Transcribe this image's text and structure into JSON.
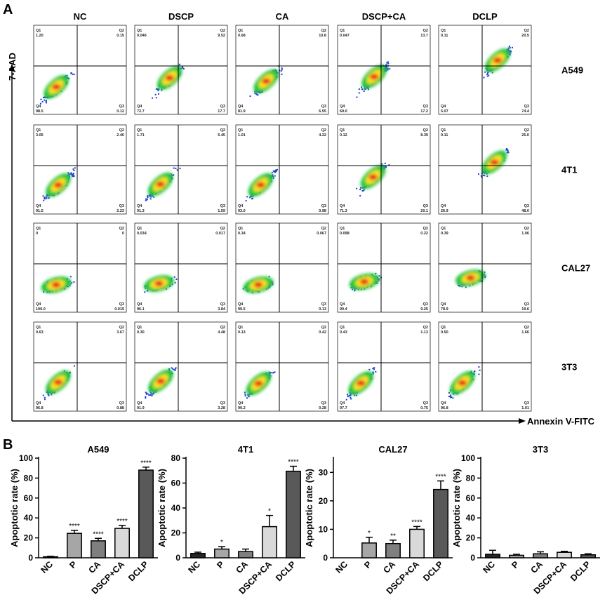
{
  "panel_a": {
    "label": "A",
    "y_axis_label": "7-AAD",
    "x_axis_label": "Annexin V-FITC",
    "columns": [
      "NC",
      "DSCP",
      "CA",
      "DSCP+CA",
      "DCLP"
    ],
    "rows": [
      {
        "name": "A549",
        "plots": [
          {
            "q1": "1.20",
            "q2": "0.15",
            "q3": "0.12",
            "q4": "98.5"
          },
          {
            "q1": "0.046",
            "q2": "9.52",
            "q3": "17.7",
            "q4": "72.7"
          },
          {
            "q1": "0.68",
            "q2": "10.8",
            "q3": "6.55",
            "q4": "81.9"
          },
          {
            "q1": "0.047",
            "q2": "13.7",
            "q3": "17.2",
            "q4": "69.0"
          },
          {
            "q1": "0.11",
            "q2": "20.5",
            "q3": "74.4",
            "q4": "5.07"
          }
        ]
      },
      {
        "name": "4T1",
        "plots": [
          {
            "q1": "3.05",
            "q2": "2.40",
            "q3": "2.23",
            "q4": "91.5"
          },
          {
            "q1": "1.71",
            "q2": "5.45",
            "q3": "1.59",
            "q4": "91.3"
          },
          {
            "q1": "1.01",
            "q2": "4.22",
            "q3": "0.98",
            "q4": "93.0"
          },
          {
            "q1": "0.12",
            "q2": "8.39",
            "q3": "20.1",
            "q4": "71.3"
          },
          {
            "q1": "0.11",
            "q2": "25.0",
            "q3": "48.0",
            "q4": "26.9"
          }
        ]
      },
      {
        "name": "CAL27",
        "plots": [
          {
            "q1": "0",
            "q2": "0",
            "q3": "0.015",
            "q4": "100.0"
          },
          {
            "q1": "0.034",
            "q2": "0.017",
            "q3": "3.84",
            "q4": "96.1"
          },
          {
            "q1": "0.34",
            "q2": "0.067",
            "q3": "0.13",
            "q4": "99.5"
          },
          {
            "q1": "0.098",
            "q2": "0.22",
            "q3": "9.25",
            "q4": "90.4"
          },
          {
            "q1": "0.39",
            "q2": "1.06",
            "q3": "19.6",
            "q4": "78.9"
          }
        ]
      },
      {
        "name": "3T3",
        "plots": [
          {
            "q1": "0.63",
            "q2": "3.67",
            "q3": "0.88",
            "q4": "96.8"
          },
          {
            "q1": "0.30",
            "q2": "4.48",
            "q3": "3.28",
            "q4": "91.9"
          },
          {
            "q1": "0.13",
            "q2": "0.42",
            "q3": "0.28",
            "q4": "99.2"
          },
          {
            "q1": "0.43",
            "q2": "1.13",
            "q3": "0.75",
            "q4": "97.7"
          },
          {
            "q1": "0.50",
            "q2": "1.66",
            "q3": "1.01",
            "q4": "96.8"
          }
        ]
      }
    ]
  },
  "panel_b": {
    "label": "B"
  },
  "chart_data": [
    {
      "type": "bar",
      "title": "A549",
      "ylabel": "Apoptotic rate (%)",
      "ylim": [
        0,
        100
      ],
      "yticks": [
        0,
        20,
        40,
        60,
        80,
        100
      ],
      "categories": [
        "NC",
        "P",
        "CA",
        "DSCP+CA",
        "DCLP"
      ],
      "values": [
        1,
        24.5,
        17,
        29.5,
        88
      ],
      "errors": [
        0.5,
        3,
        2.5,
        3,
        3
      ],
      "significance": [
        "",
        "****",
        "****",
        "****",
        "****"
      ],
      "colors": [
        "#262626",
        "#a6a6a6",
        "#7f7f7f",
        "#d9d9d9",
        "#595959"
      ]
    },
    {
      "type": "bar",
      "title": "4T1",
      "ylabel": "Apoptotic rate (%)",
      "ylim": [
        0,
        80
      ],
      "yticks": [
        0,
        20,
        40,
        60,
        80
      ],
      "categories": [
        "NC",
        "P",
        "CA",
        "DSCP+CA",
        "DCLP"
      ],
      "values": [
        3.5,
        7,
        5,
        25,
        69.5
      ],
      "errors": [
        1,
        2,
        2,
        9,
        4
      ],
      "significance": [
        "",
        "*",
        "",
        "*",
        "****"
      ],
      "colors": [
        "#262626",
        "#a6a6a6",
        "#7f7f7f",
        "#d9d9d9",
        "#595959"
      ]
    },
    {
      "type": "bar",
      "title": "CAL27",
      "ylabel": "Apoptotic rate (%)",
      "ylim": [
        0,
        35
      ],
      "yticks": [
        0,
        10,
        20,
        30
      ],
      "categories": [
        "NC",
        "P",
        "CA",
        "DSCP+CA",
        "DCLP"
      ],
      "values": [
        0,
        5.2,
        5,
        10,
        24
      ],
      "errors": [
        0,
        2,
        1.2,
        1,
        3
      ],
      "significance": [
        "",
        "*",
        "**",
        "****",
        "****"
      ],
      "colors": [
        "#262626",
        "#a6a6a6",
        "#7f7f7f",
        "#d9d9d9",
        "#595959"
      ]
    },
    {
      "type": "bar",
      "title": "3T3",
      "ylabel": "Apoptotic rate (%)",
      "ylim": [
        0,
        100
      ],
      "yticks": [
        0,
        20,
        40,
        60,
        80,
        100
      ],
      "categories": [
        "NC",
        "P",
        "CA",
        "DSCP+CA",
        "DCLP"
      ],
      "values": [
        3.5,
        2.5,
        4,
        5.5,
        3
      ],
      "errors": [
        4,
        1,
        2,
        1,
        1
      ],
      "significance": [
        "",
        "",
        "",
        "",
        ""
      ],
      "colors": [
        "#262626",
        "#a6a6a6",
        "#7f7f7f",
        "#d9d9d9",
        "#595959"
      ]
    }
  ]
}
